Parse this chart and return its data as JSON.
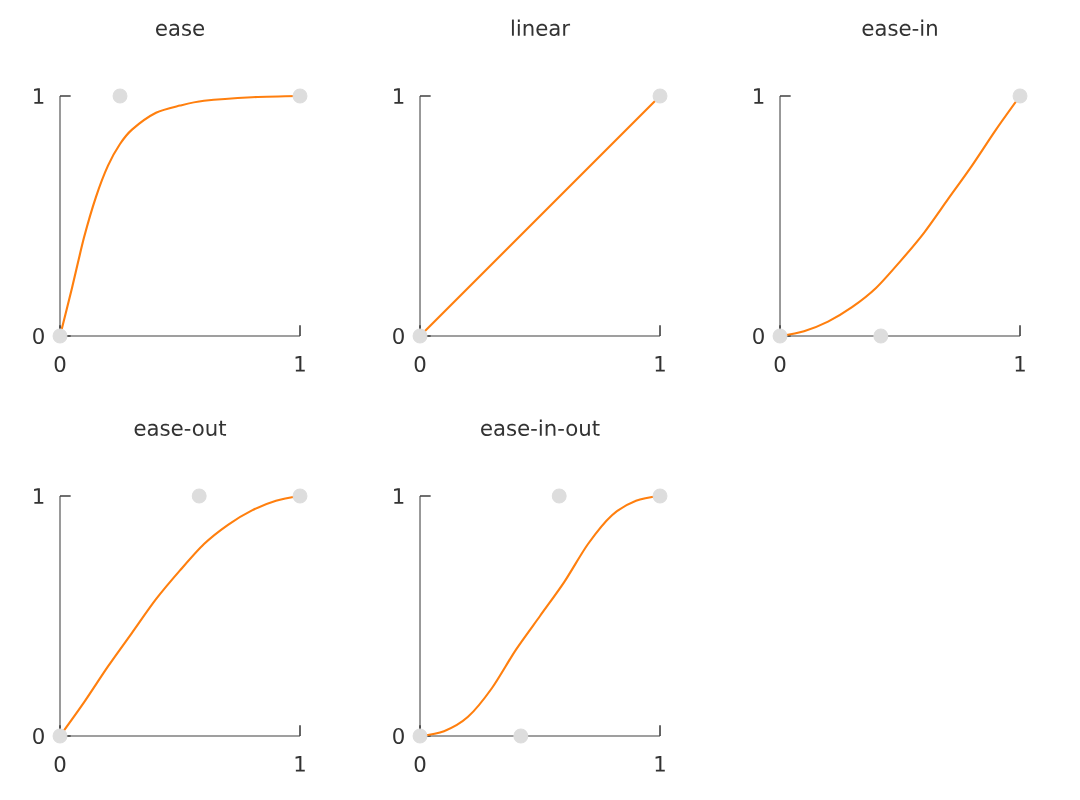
{
  "chart_data": [
    {
      "type": "line",
      "title": "ease",
      "xlim": [
        0,
        1
      ],
      "ylim": [
        0,
        1
      ],
      "xticks": [
        0,
        1
      ],
      "yticks": [
        0,
        1
      ],
      "series": [
        {
          "type": "scatter",
          "marker": "circle",
          "color": "#dddddd",
          "x": [
            0,
            0.25,
            1
          ],
          "values": [
            0,
            1,
            1
          ]
        },
        {
          "marker": "none",
          "color": "#ff7f0e",
          "x": [
            0,
            0.05,
            0.1,
            0.15,
            0.2,
            0.25,
            0.3,
            0.4,
            0.5,
            0.6,
            0.8,
            1
          ],
          "values": [
            0,
            0.2,
            0.41,
            0.58,
            0.71,
            0.8,
            0.86,
            0.93,
            0.96,
            0.98,
            0.995,
            1
          ]
        }
      ]
    },
    {
      "type": "line",
      "title": "linear",
      "xlim": [
        0,
        1
      ],
      "ylim": [
        0,
        1
      ],
      "xticks": [
        0,
        1
      ],
      "yticks": [
        0,
        1
      ],
      "series": [
        {
          "type": "scatter",
          "marker": "circle",
          "color": "#dddddd",
          "x": [
            0,
            1
          ],
          "values": [
            0,
            1
          ]
        },
        {
          "marker": "none",
          "color": "#ff7f0e",
          "x": [
            0,
            1
          ],
          "values": [
            0,
            1
          ]
        }
      ]
    },
    {
      "type": "line",
      "title": "ease-in",
      "xlim": [
        0,
        1
      ],
      "ylim": [
        0,
        1
      ],
      "xticks": [
        0,
        1
      ],
      "yticks": [
        0,
        1
      ],
      "series": [
        {
          "type": "scatter",
          "marker": "circle",
          "color": "#dddddd",
          "x": [
            0,
            0.42,
            1
          ],
          "values": [
            0,
            0,
            1
          ]
        },
        {
          "marker": "none",
          "color": "#ff7f0e",
          "x": [
            0,
            0.1,
            0.2,
            0.3,
            0.4,
            0.5,
            0.6,
            0.7,
            0.8,
            0.9,
            1
          ],
          "values": [
            0,
            0.02,
            0.06,
            0.12,
            0.2,
            0.31,
            0.43,
            0.57,
            0.71,
            0.86,
            1
          ]
        }
      ]
    },
    {
      "type": "line",
      "title": "ease-out",
      "xlim": [
        0,
        1
      ],
      "ylim": [
        0,
        1
      ],
      "xticks": [
        0,
        1
      ],
      "yticks": [
        0,
        1
      ],
      "series": [
        {
          "type": "scatter",
          "marker": "circle",
          "color": "#dddddd",
          "x": [
            0,
            0.58,
            1
          ],
          "values": [
            0,
            1,
            1
          ]
        },
        {
          "marker": "none",
          "color": "#ff7f0e",
          "x": [
            0,
            0.1,
            0.2,
            0.3,
            0.4,
            0.5,
            0.6,
            0.7,
            0.8,
            0.9,
            1
          ],
          "values": [
            0,
            0.14,
            0.29,
            0.43,
            0.57,
            0.69,
            0.8,
            0.88,
            0.94,
            0.98,
            1
          ]
        }
      ]
    },
    {
      "type": "line",
      "title": "ease-in-out",
      "xlim": [
        0,
        1
      ],
      "ylim": [
        0,
        1
      ],
      "xticks": [
        0,
        1
      ],
      "yticks": [
        0,
        1
      ],
      "series": [
        {
          "type": "scatter",
          "marker": "circle",
          "color": "#dddddd",
          "x": [
            0,
            0.42,
            0.58,
            1
          ],
          "values": [
            0,
            0,
            1,
            1
          ]
        },
        {
          "marker": "none",
          "color": "#ff7f0e",
          "x": [
            0,
            0.1,
            0.2,
            0.3,
            0.4,
            0.5,
            0.6,
            0.7,
            0.8,
            0.9,
            1
          ],
          "values": [
            0,
            0.02,
            0.08,
            0.2,
            0.36,
            0.5,
            0.64,
            0.8,
            0.92,
            0.98,
            1
          ]
        }
      ]
    }
  ]
}
